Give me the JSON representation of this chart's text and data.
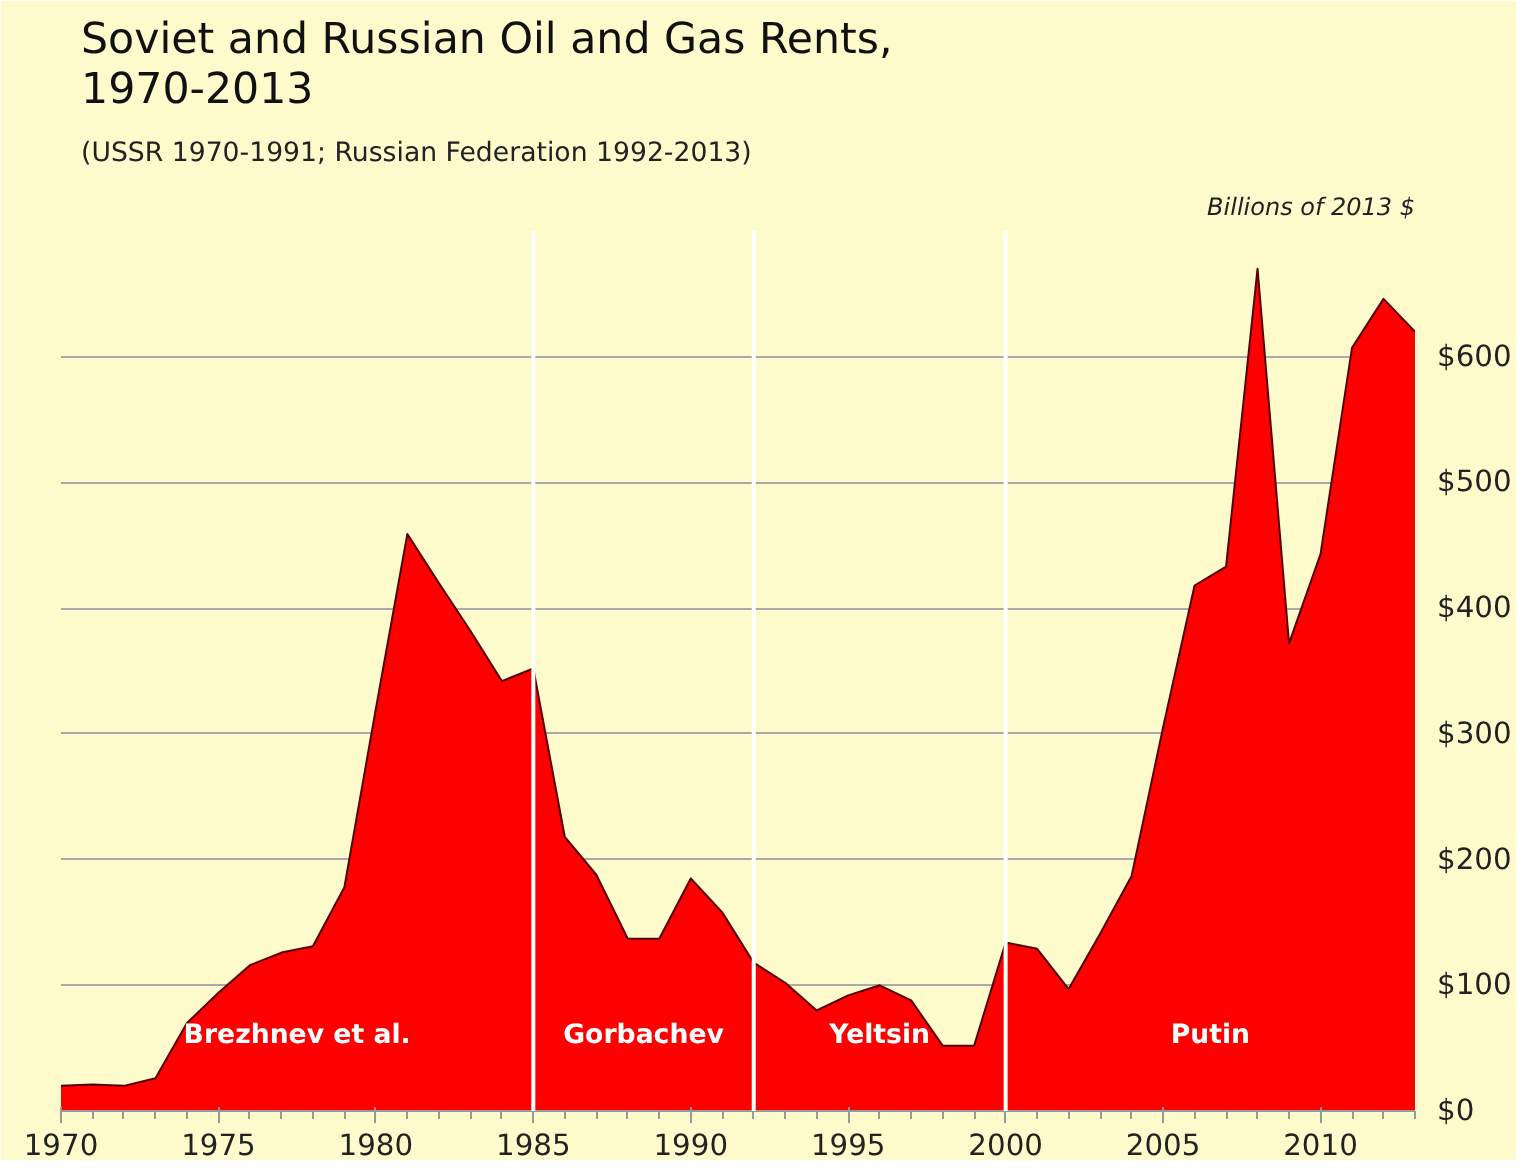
{
  "chart_data": {
    "type": "area",
    "title": "Soviet and Russian Oil and Gas Rents,\n1970-2013",
    "subtitle": "(USSR 1970-1991; Russian Federation 1992-2013)",
    "ylabel": "Billions of 2013 $",
    "x": [
      1970,
      1971,
      1972,
      1973,
      1974,
      1975,
      1976,
      1977,
      1978,
      1979,
      1980,
      1981,
      1982,
      1983,
      1984,
      1985,
      1986,
      1987,
      1988,
      1989,
      1990,
      1991,
      1992,
      1993,
      1994,
      1995,
      1996,
      1997,
      1998,
      1999,
      2000,
      2001,
      2002,
      2003,
      2004,
      2005,
      2006,
      2007,
      2008,
      2009,
      2010,
      2011,
      2012,
      2013
    ],
    "series": [
      {
        "color": "#ff0000",
        "values": [
          20,
          21,
          20,
          26,
          70,
          94,
          116,
          126,
          131,
          178,
          320,
          459,
          420,
          382,
          342,
          352,
          218,
          188,
          137,
          137,
          185,
          158,
          118,
          102,
          80,
          92,
          100,
          88,
          52,
          52,
          134,
          129,
          97,
          141,
          187,
          305,
          418,
          433,
          670,
          372,
          443,
          607,
          646,
          620
        ]
      }
    ],
    "xlim": [
      1970,
      2013
    ],
    "ylim": [
      0,
      700
    ],
    "xticks": [
      1970,
      1975,
      1980,
      1985,
      1990,
      1995,
      2000,
      2005,
      2010
    ],
    "yticks": [
      {
        "value": 0,
        "label": "$0"
      },
      {
        "value": 100,
        "label": "$100"
      },
      {
        "value": 200,
        "label": "$200"
      },
      {
        "value": 300,
        "label": "$300"
      },
      {
        "value": 400,
        "label": "$400"
      },
      {
        "value": 500,
        "label": "$500"
      },
      {
        "value": 600,
        "label": "$600"
      }
    ],
    "grid": "y",
    "ref_lines": [
      {
        "axis": "x",
        "value": 1985,
        "color": "#ffffff"
      },
      {
        "axis": "x",
        "value": 1992,
        "color": "#ffffff"
      },
      {
        "axis": "x",
        "value": 2000,
        "color": "#ffffff"
      }
    ],
    "annotations": [
      "Brezhnev et al.",
      "Gorbachev",
      "Yeltsin",
      "Putin"
    ]
  }
}
